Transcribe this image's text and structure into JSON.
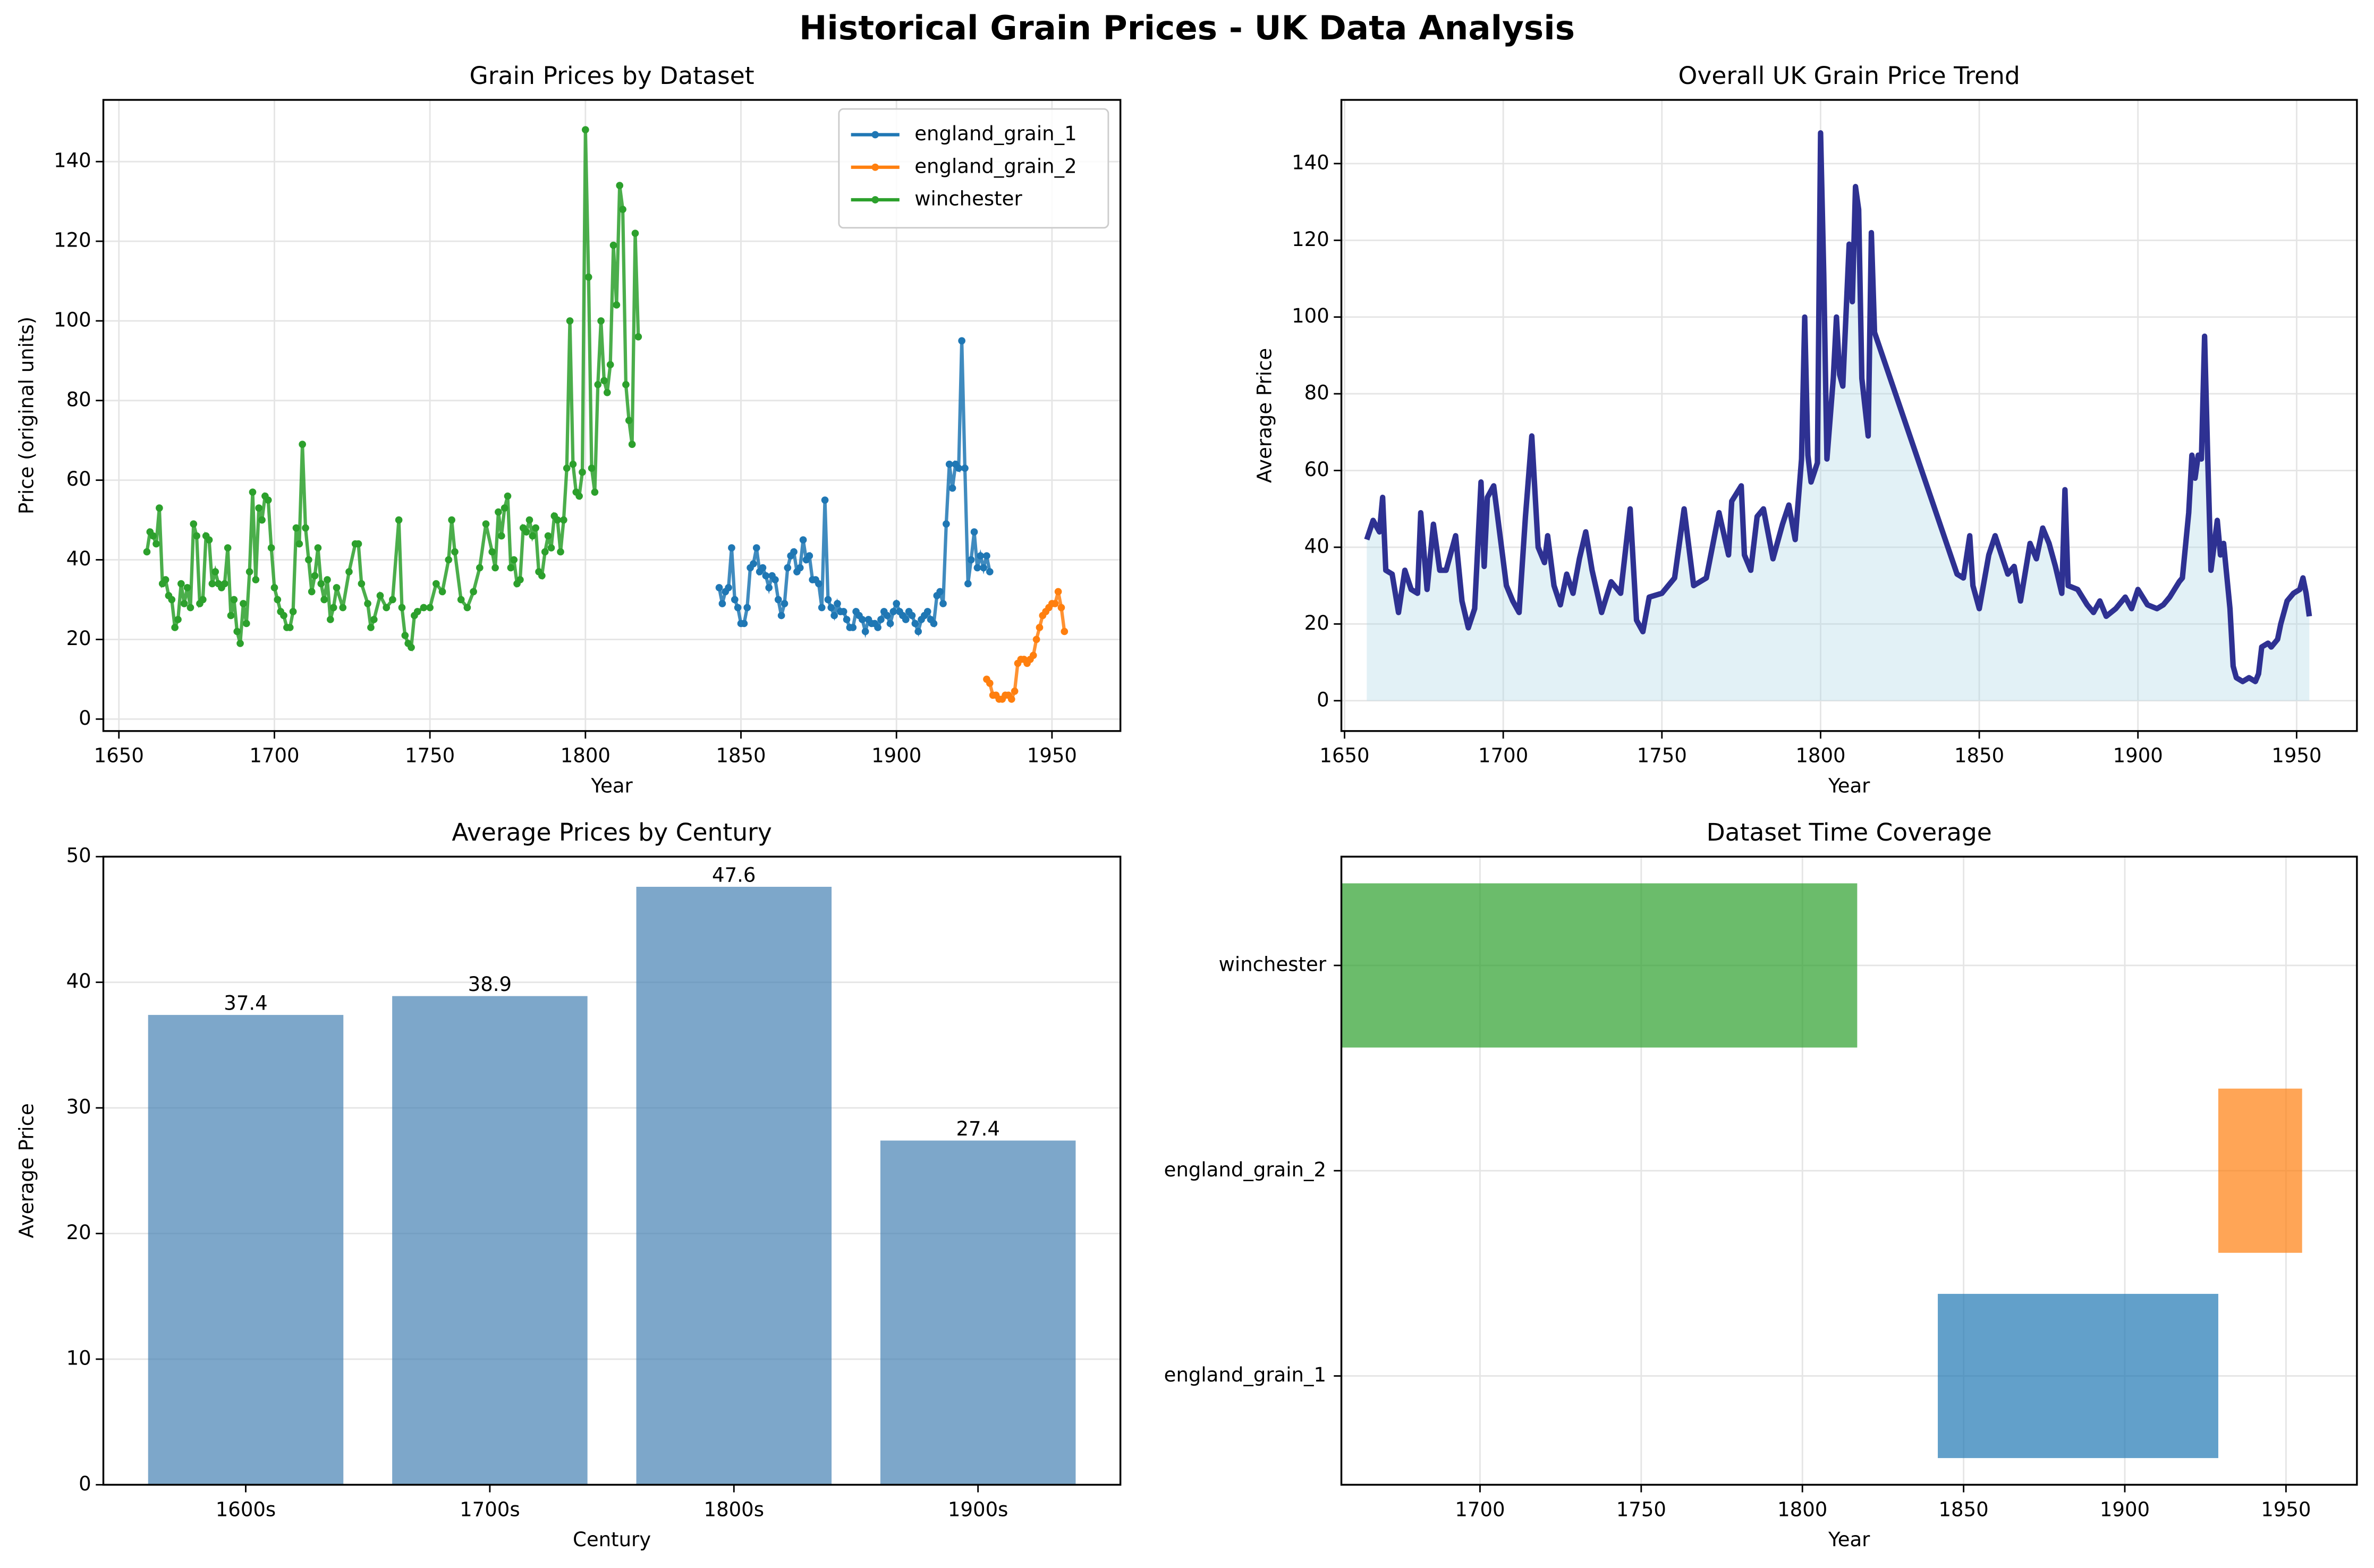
{
  "title": "Historical Grain Prices - UK Data Analysis",
  "chart_data": [
    {
      "type": "line",
      "title": "Grain Prices by Dataset",
      "xlabel": "Year",
      "ylabel": "Price (original units)",
      "xlim": [
        1645,
        1972
      ],
      "xticks": [
        1650,
        1700,
        1750,
        1800,
        1850,
        1900,
        1950
      ],
      "ylim": [
        -3,
        155.5
      ],
      "yticks": [
        0,
        20,
        40,
        60,
        80,
        100,
        120,
        140
      ],
      "grid": true,
      "legend": "upper right",
      "series": [
        {
          "name": "england_grain_1",
          "color": "#1f77b4",
          "x": [
            1843,
            1844,
            1845,
            1846,
            1847,
            1848,
            1849,
            1850,
            1851,
            1852,
            1853,
            1854,
            1855,
            1856,
            1857,
            1858,
            1859,
            1860,
            1861,
            1862,
            1863,
            1864,
            1865,
            1866,
            1867,
            1868,
            1869,
            1870,
            1871,
            1872,
            1873,
            1874,
            1875,
            1876,
            1877,
            1878,
            1879,
            1880,
            1881,
            1882,
            1883,
            1884,
            1885,
            1886,
            1887,
            1888,
            1889,
            1890,
            1891,
            1892,
            1893,
            1894,
            1895,
            1896,
            1897,
            1898,
            1899,
            1900,
            1901,
            1902,
            1903,
            1904,
            1905,
            1906,
            1907,
            1908,
            1909,
            1910,
            1911,
            1912,
            1913,
            1914,
            1915,
            1916,
            1917,
            1918,
            1919,
            1920,
            1921,
            1922,
            1923,
            1924,
            1925,
            1926,
            1927,
            1928,
            1929,
            1930
          ],
          "values": [
            33,
            29,
            32,
            33,
            43,
            30,
            28,
            24,
            24,
            28,
            38,
            39,
            43,
            37,
            38,
            36,
            33,
            36,
            35,
            30,
            26,
            29,
            38,
            41,
            42,
            37,
            38,
            45,
            40,
            41,
            35,
            35,
            34,
            28,
            55,
            30,
            28,
            26,
            29,
            27,
            27,
            25,
            23,
            23,
            27,
            26,
            25,
            22,
            25,
            24,
            24,
            23,
            25,
            27,
            26,
            24,
            27,
            29,
            27,
            26,
            25,
            27,
            26,
            24,
            22,
            25,
            26,
            27,
            25,
            24,
            31,
            32,
            29,
            49,
            64,
            58,
            64,
            63,
            95,
            63,
            34,
            40,
            47,
            38,
            41,
            38,
            41,
            37
          ]
        },
        {
          "name": "england_grain_2",
          "color": "#ff7f0e",
          "x": [
            1929,
            1930,
            1931,
            1932,
            1933,
            1934,
            1935,
            1936,
            1937,
            1938,
            1939,
            1940,
            1941,
            1942,
            1943,
            1944,
            1945,
            1946,
            1947,
            1948,
            1949,
            1950,
            1951,
            1952,
            1953,
            1954
          ],
          "values": [
            10,
            9,
            6,
            6,
            5,
            5,
            6,
            6,
            5,
            7,
            14,
            15,
            15,
            14,
            15,
            16,
            20,
            23,
            26,
            27,
            28,
            29,
            29,
            32,
            28,
            22
          ]
        },
        {
          "name": "winchester",
          "color": "#2ca02c",
          "x": [
            1659,
            1660,
            1661,
            1662,
            1663,
            1664,
            1665,
            1666,
            1667,
            1668,
            1669,
            1670,
            1671,
            1672,
            1673,
            1674,
            1675,
            1676,
            1677,
            1678,
            1679,
            1680,
            1681,
            1682,
            1683,
            1684,
            1685,
            1686,
            1687,
            1688,
            1689,
            1690,
            1691,
            1692,
            1693,
            1694,
            1695,
            1696,
            1697,
            1698,
            1699,
            1700,
            1701,
            1702,
            1703,
            1704,
            1705,
            1706,
            1707,
            1708,
            1709,
            1710,
            1711,
            1712,
            1713,
            1714,
            1715,
            1716,
            1717,
            1718,
            1719,
            1720,
            1722,
            1724,
            1726,
            1727,
            1728,
            1730,
            1731,
            1732,
            1734,
            1736,
            1738,
            1740,
            1741,
            1742,
            1743,
            1744,
            1745,
            1746,
            1748,
            1750,
            1752,
            1754,
            1756,
            1757,
            1758,
            1760,
            1762,
            1764,
            1766,
            1768,
            1770,
            1771,
            1772,
            1773,
            1774,
            1775,
            1776,
            1777,
            1778,
            1779,
            1780,
            1781,
            1782,
            1783,
            1784,
            1785,
            1786,
            1787,
            1788,
            1789,
            1790,
            1791,
            1792,
            1793,
            1794,
            1795,
            1796,
            1797,
            1798,
            1799,
            1800,
            1801,
            1802,
            1803,
            1804,
            1805,
            1806,
            1807,
            1808,
            1809,
            1810,
            1811,
            1812,
            1813,
            1814,
            1815,
            1816,
            1817
          ],
          "values": [
            42,
            47,
            46,
            44,
            53,
            34,
            35,
            31,
            30,
            23,
            25,
            34,
            29,
            33,
            28,
            49,
            46,
            29,
            30,
            46,
            45,
            34,
            37,
            34,
            33,
            34,
            43,
            26,
            30,
            22,
            19,
            29,
            24,
            37,
            57,
            35,
            53,
            50,
            56,
            55,
            43,
            33,
            30,
            27,
            26,
            23,
            23,
            27,
            48,
            44,
            69,
            48,
            40,
            32,
            36,
            43,
            34,
            30,
            35,
            25,
            28,
            33,
            28,
            37,
            44,
            44,
            34,
            29,
            23,
            25,
            31,
            28,
            30,
            50,
            28,
            21,
            19,
            18,
            26,
            27,
            28,
            28,
            34,
            32,
            40,
            50,
            42,
            30,
            28,
            32,
            38,
            49,
            42,
            38,
            52,
            46,
            53,
            56,
            38,
            40,
            34,
            35,
            48,
            47,
            50,
            46,
            48,
            37,
            36,
            42,
            46,
            43,
            51,
            50,
            42,
            50,
            63,
            100,
            64,
            57,
            56,
            62,
            148,
            111,
            63,
            57,
            84,
            100,
            85,
            82,
            89,
            119,
            104,
            134,
            128,
            84,
            75,
            69,
            122,
            96
          ]
        }
      ]
    },
    {
      "type": "area",
      "title": "Overall UK Grain Price Trend",
      "xlabel": "Year",
      "ylabel": "Average Price",
      "xlim": [
        1649,
        1969
      ],
      "xticks": [
        1650,
        1700,
        1750,
        1800,
        1850,
        1900,
        1950
      ],
      "ylim": [
        -7.9,
        156.6
      ],
      "yticks": [
        0,
        20,
        40,
        60,
        80,
        100,
        120,
        140
      ],
      "grid": true,
      "color": "#2e3192",
      "fill_color": "#add8e6",
      "x": [
        1657,
        1659,
        1661,
        1662,
        1663,
        1665,
        1667,
        1669,
        1671,
        1673,
        1674,
        1676,
        1678,
        1680,
        1682,
        1685,
        1687,
        1689,
        1691,
        1693,
        1694,
        1695,
        1697,
        1699,
        1701,
        1703,
        1705,
        1707,
        1709,
        1711,
        1713,
        1714,
        1716,
        1718,
        1720,
        1722,
        1724,
        1726,
        1728,
        1731,
        1734,
        1737,
        1740,
        1742,
        1744,
        1746,
        1750,
        1754,
        1757,
        1760,
        1764,
        1768,
        1771,
        1772,
        1775,
        1776,
        1778,
        1780,
        1782,
        1785,
        1788,
        1790,
        1792,
        1794,
        1795,
        1796,
        1797,
        1799,
        1800,
        1801,
        1802,
        1804,
        1805,
        1806,
        1807,
        1809,
        1810,
        1811,
        1812,
        1813,
        1815,
        1816,
        1817,
        1843,
        1845,
        1847,
        1848,
        1850,
        1853,
        1855,
        1857,
        1859,
        1861,
        1863,
        1866,
        1868,
        1870,
        1872,
        1874,
        1876,
        1877,
        1878,
        1881,
        1884,
        1886,
        1888,
        1890,
        1893,
        1896,
        1898,
        1900,
        1903,
        1906,
        1908,
        1910,
        1913,
        1914,
        1916,
        1917,
        1918,
        1919,
        1920,
        1921,
        1922,
        1923,
        1925,
        1926,
        1927,
        1929,
        1930,
        1931,
        1933,
        1935,
        1937,
        1938,
        1939,
        1941,
        1942,
        1944,
        1945,
        1947,
        1949,
        1951,
        1952,
        1953,
        1954
      ],
      "values": [
        42,
        47,
        44,
        53,
        34,
        33,
        23,
        34,
        29,
        28,
        49,
        29,
        46,
        34,
        34,
        43,
        26,
        19,
        24,
        57,
        35,
        53,
        56,
        43,
        30,
        26,
        23,
        48,
        69,
        40,
        36,
        43,
        30,
        25,
        33,
        28,
        37,
        44,
        34,
        23,
        31,
        28,
        50,
        21,
        18,
        27,
        28,
        32,
        50,
        30,
        32,
        49,
        38,
        52,
        56,
        38,
        34,
        48,
        50,
        37,
        46,
        51,
        42,
        63,
        100,
        64,
        57,
        62,
        148,
        111,
        63,
        84,
        100,
        85,
        82,
        119,
        104,
        134,
        128,
        84,
        69,
        122,
        96,
        33,
        32,
        43,
        30,
        24,
        38,
        43,
        38,
        33,
        35,
        26,
        41,
        37,
        45,
        41,
        35,
        28,
        55,
        30,
        29,
        25,
        23,
        26,
        22,
        24,
        27,
        24,
        29,
        25,
        24,
        25,
        27,
        31,
        32,
        49,
        64,
        58,
        64,
        63,
        95,
        63,
        34,
        47,
        38,
        41,
        24,
        9,
        6,
        5,
        6,
        5,
        7,
        14,
        15,
        14,
        16,
        20,
        26,
        28,
        29,
        32,
        28,
        22
      ]
    },
    {
      "type": "bar",
      "title": "Average Prices by Century",
      "xlabel": "Century",
      "ylabel": "Average Price",
      "categories": [
        "1600s",
        "1700s",
        "1800s",
        "1900s"
      ],
      "values": [
        37.4,
        38.9,
        47.6,
        27.4
      ],
      "color": "#4682b4",
      "ylim": [
        0,
        50
      ],
      "yticks": [
        0,
        10,
        20,
        30,
        40,
        50
      ],
      "grid": true
    },
    {
      "type": "timeline",
      "title": "Dataset Time Coverage",
      "xlabel": "Year",
      "categories": [
        "england_grain_1",
        "england_grain_2",
        "winchester"
      ],
      "starts": [
        1842,
        1929,
        1657
      ],
      "ends": [
        1929,
        1955,
        1817
      ],
      "colors": [
        "#1f77b4",
        "#ff7f0e",
        "#2ca02c"
      ],
      "xlim": [
        1657,
        1972
      ],
      "xticks": [
        1700,
        1750,
        1800,
        1850,
        1900,
        1950
      ],
      "grid": true
    }
  ]
}
